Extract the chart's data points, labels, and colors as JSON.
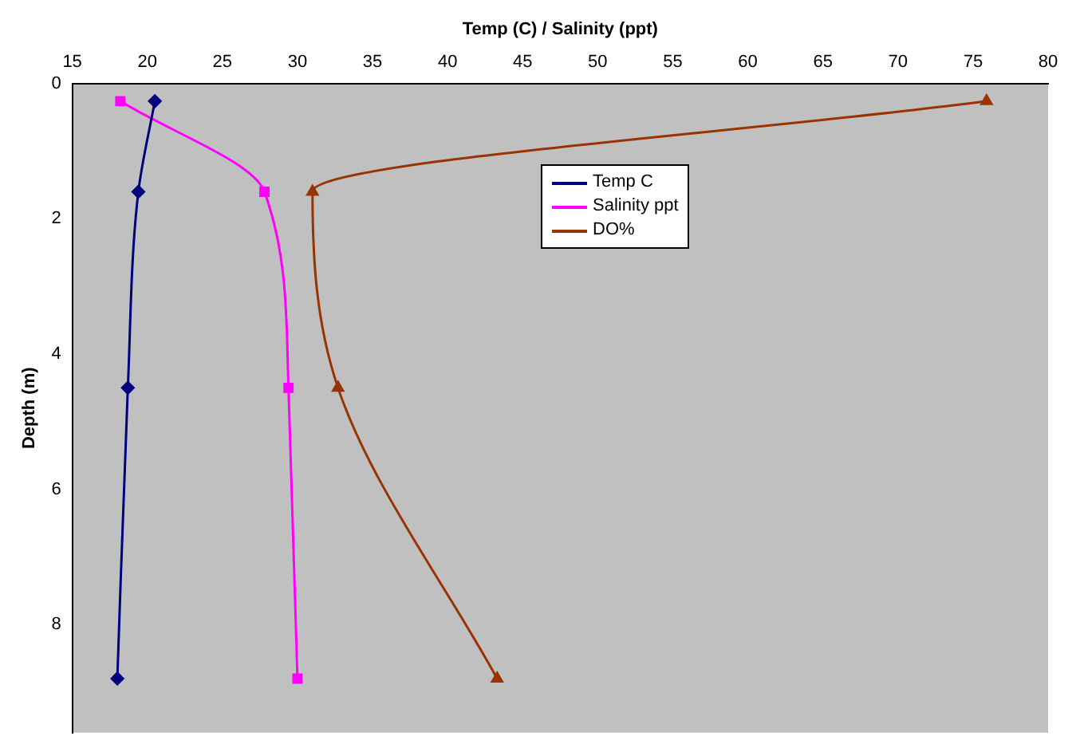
{
  "chart_data": {
    "type": "line",
    "xlabel": "Temp (C) / Salinity (ppt)",
    "ylabel": "Depth (m)",
    "xlim": [
      15,
      80
    ],
    "xticks": [
      15,
      20,
      25,
      30,
      35,
      40,
      45,
      50,
      55,
      60,
      65,
      70,
      75,
      80
    ],
    "ylim": [
      9.6,
      0
    ],
    "yticks": [
      0,
      2,
      4,
      6,
      8
    ],
    "grid": false,
    "legend": "top",
    "series": [
      {
        "name": "Temp C",
        "color": "#000080",
        "marker": "diamond",
        "x": [
          20.5,
          19.4,
          18.7,
          18.0
        ],
        "values": [
          0.26,
          1.6,
          4.5,
          8.8
        ]
      },
      {
        "name": "Salinity ppt",
        "color": "#ff00ff",
        "marker": "square",
        "x": [
          18.2,
          27.8,
          29.4,
          30.0
        ],
        "values": [
          0.26,
          1.6,
          4.5,
          8.8
        ]
      },
      {
        "name": "DO%",
        "color": "#993300",
        "marker": "triangle",
        "x": [
          75.9,
          31.0,
          32.7,
          43.3
        ],
        "values": [
          0.26,
          1.6,
          4.5,
          8.8
        ]
      }
    ]
  }
}
